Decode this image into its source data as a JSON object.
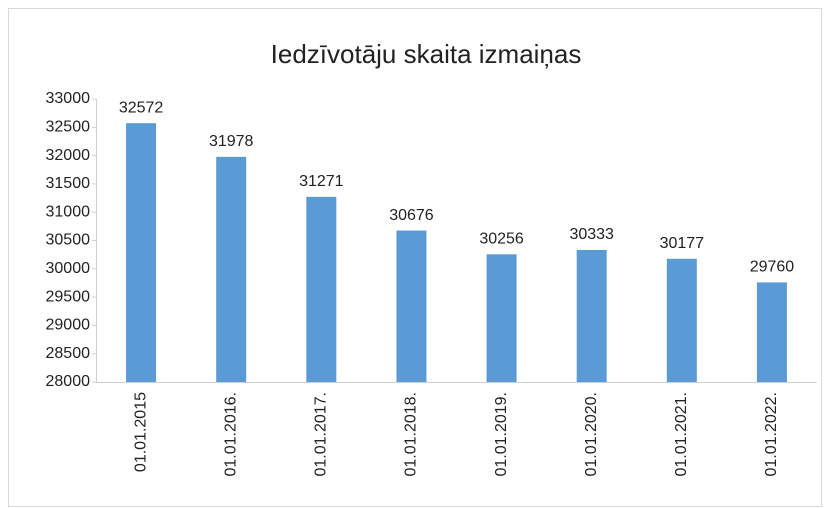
{
  "chart_data": {
    "type": "bar",
    "title": "Iedzīvotāju skaita izmaiņas",
    "categories": [
      "01.01.2015",
      "01.01.2016.",
      "01.01.2017.",
      "01.01.2018.",
      "01.01.2019.",
      "01.01.2020.",
      "01.01.2021.",
      "01.01.2022."
    ],
    "values": [
      32572,
      31978,
      31271,
      30676,
      30256,
      30333,
      30177,
      29760
    ],
    "color": "#5b9bd5",
    "ylim": [
      28000,
      33000
    ],
    "yticks": [
      28000,
      28500,
      29000,
      29500,
      30000,
      30500,
      31000,
      31500,
      32000,
      32500,
      33000
    ],
    "grid": false
  }
}
